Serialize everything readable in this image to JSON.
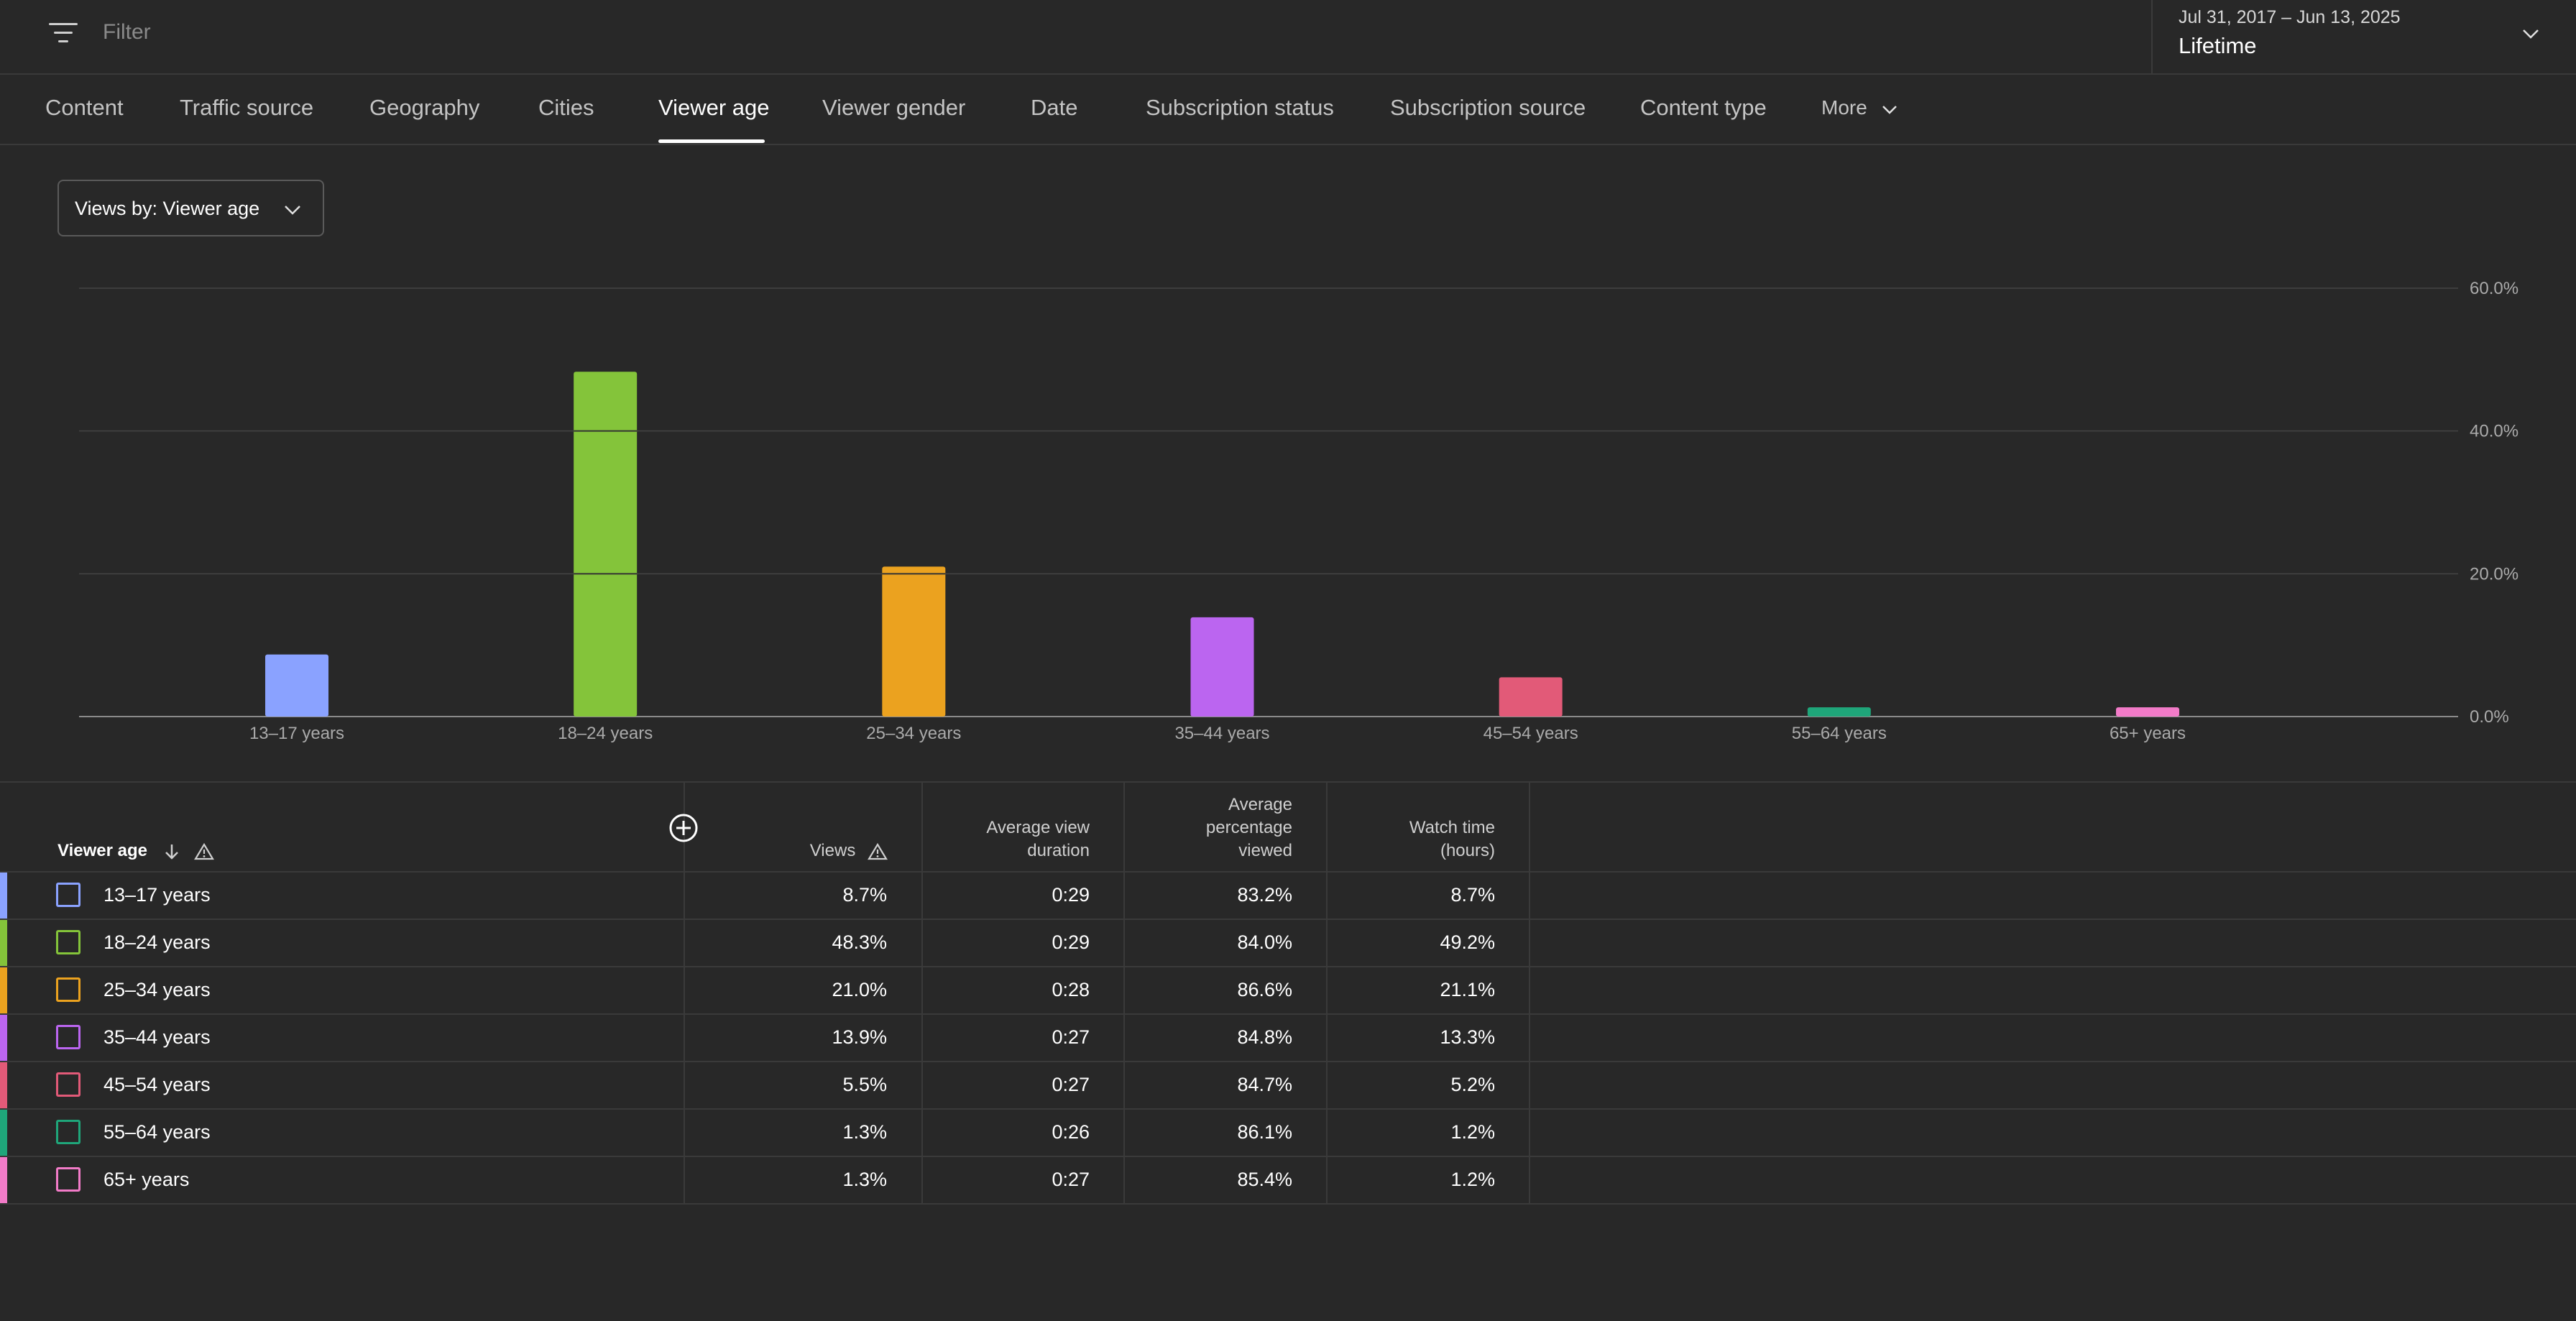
{
  "filter": {
    "placeholder": "Filter"
  },
  "date": {
    "range": "Jul 31, 2017 – Jun 13, 2025",
    "label": "Lifetime"
  },
  "tabs": [
    {
      "label": "Content"
    },
    {
      "label": "Traffic source"
    },
    {
      "label": "Geography"
    },
    {
      "label": "Cities"
    },
    {
      "label": "Viewer age",
      "active": true
    },
    {
      "label": "Viewer gender"
    },
    {
      "label": "Date"
    },
    {
      "label": "Subscription status"
    },
    {
      "label": "Subscription source"
    },
    {
      "label": "Content type"
    },
    {
      "label": "More"
    }
  ],
  "metric_select": {
    "label": "Views by: Viewer age"
  },
  "chart_data": {
    "type": "bar",
    "categories": [
      "13–17 years",
      "18–24 years",
      "25–34 years",
      "35–44 years",
      "45–54 years",
      "55–64 years",
      "65+ years"
    ],
    "values": [
      8.7,
      48.3,
      21.0,
      13.9,
      5.5,
      1.3,
      1.3
    ],
    "colors": [
      "#8aa2ff",
      "#84c43a",
      "#eba21f",
      "#bb65f0",
      "#e25a78",
      "#1fa67a",
      "#f27bc8"
    ],
    "ylim": [
      0,
      60
    ],
    "yticks": [
      "0.0%",
      "20.0%",
      "40.0%",
      "60.0%"
    ],
    "ytick_values": [
      0,
      20,
      40,
      60
    ],
    "grid": true
  },
  "table": {
    "headers": {
      "age": "Viewer age",
      "views": "Views",
      "avd": [
        "Average view",
        "duration"
      ],
      "apv": [
        "Average",
        "percentage",
        "viewed"
      ],
      "watch": [
        "Watch time",
        "(hours)"
      ]
    },
    "rows": [
      {
        "age": "13–17 years",
        "views": "8.7%",
        "avd": "0:29",
        "apv": "83.2%",
        "watch": "8.7%",
        "color": "#8aa2ff"
      },
      {
        "age": "18–24 years",
        "views": "48.3%",
        "avd": "0:29",
        "apv": "84.0%",
        "watch": "49.2%",
        "color": "#84c43a"
      },
      {
        "age": "25–34 years",
        "views": "21.0%",
        "avd": "0:28",
        "apv": "86.6%",
        "watch": "21.1%",
        "color": "#eba21f"
      },
      {
        "age": "35–44 years",
        "views": "13.9%",
        "avd": "0:27",
        "apv": "84.8%",
        "watch": "13.3%",
        "color": "#bb65f0"
      },
      {
        "age": "45–54 years",
        "views": "5.5%",
        "avd": "0:27",
        "apv": "84.7%",
        "watch": "5.2%",
        "color": "#e25a78"
      },
      {
        "age": "55–64 years",
        "views": "1.3%",
        "avd": "0:26",
        "apv": "86.1%",
        "watch": "1.2%",
        "color": "#1fa67a"
      },
      {
        "age": "65+ years",
        "views": "1.3%",
        "avd": "0:27",
        "apv": "85.4%",
        "watch": "1.2%",
        "color": "#f27bc8"
      }
    ]
  }
}
